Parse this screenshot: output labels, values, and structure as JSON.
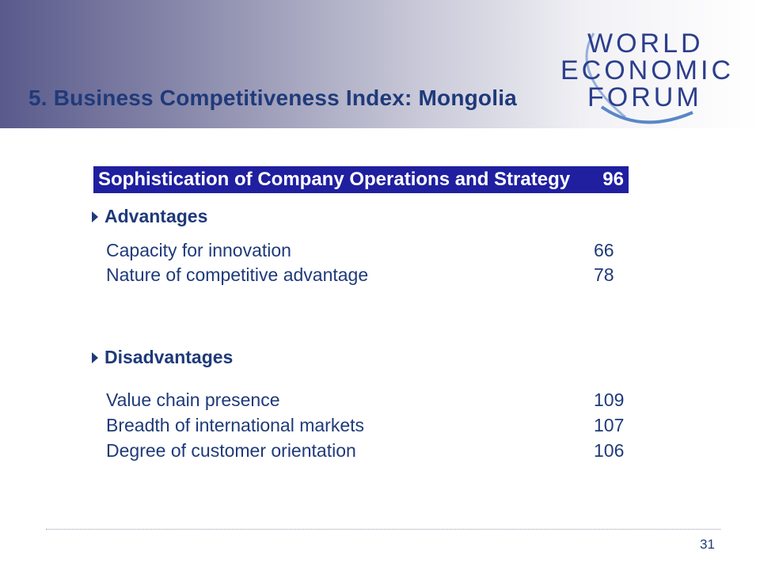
{
  "title": "5. Business Competitiveness Index: Mongolia",
  "logo": {
    "line1": "WORLD",
    "line2": "ECONOMIC",
    "line3": "FORUM"
  },
  "section": {
    "label": "Sophistication of Company Operations and Strategy",
    "score": "96"
  },
  "advantages": {
    "heading": "Advantages",
    "items": [
      {
        "label": "Capacity for innovation",
        "rank": "66"
      },
      {
        "label": "Nature of competitive advantage",
        "rank": "78"
      }
    ]
  },
  "disadvantages": {
    "heading": "Disadvantages",
    "items": [
      {
        "label": "Value chain presence",
        "rank": "109"
      },
      {
        "label": "Breadth of international markets",
        "rank": "107"
      },
      {
        "label": "Degree of customer orientation",
        "rank": "106"
      }
    ]
  },
  "page_number": "31"
}
